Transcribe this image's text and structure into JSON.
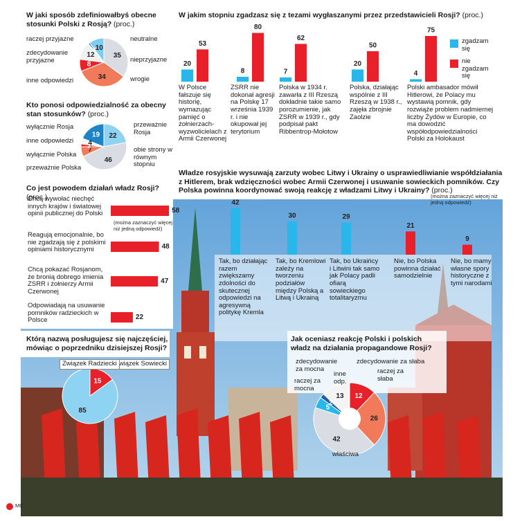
{
  "chart_data": [
    {
      "type": "pie",
      "title": "W jaki sposób zdefiniowałbyś obecne stosunki Polski z Rosją?",
      "unit": "(proc.)",
      "categories": [
        "neutralne",
        "nieprzyjazne",
        "wrogie",
        "inne odpowiedzi",
        "zdecydowanie przyjazne",
        "raczej przyjazne"
      ],
      "values": [
        35,
        34,
        8,
        12,
        1,
        10
      ],
      "colors": [
        "#d9dde3",
        "#f07a5a",
        "#e8202a",
        "#eef0f2",
        "#1f5fa8",
        "#7ccdf0"
      ]
    },
    {
      "type": "bar",
      "title": "W jakim stopniu zgadzasz się z tezami wygłaszanymi przez przedstawicieli Rosji?",
      "unit": "(proc.)",
      "categories": [
        "W Polsce fałszuje się historię, wymazując pamięć o żołnierzach-wyzwolicielach z Armii Czerwonej",
        "ZSRR nie dokonał agresji na Polskę 17 września 1939 r. i nie okupował jej terytorium",
        "Polska w 1934 r. zawarła z III Rzeszą dokładnie takie samo porozumienie, jak ZSRR w 1939 r., gdy podpisał pakt Ribbentrop-Mołotow",
        "Polska, działając wspólnie z III Rzeszą w 1938 r., zajęła zbrojnie Zaolzie",
        "Polski ambasador mówił Hitlerowi, że Polacy mu wystawią pomnik, gdy rozwiąże problem nadmiernej liczby Żydów w Europie, co ma dowodzić współodpowiedzialności Polski za Holokaust"
      ],
      "series": [
        {
          "name": "zgadzam się",
          "color": "#29b6ea",
          "values": [
            20,
            8,
            7,
            20,
            4
          ]
        },
        {
          "name": "nie zgadzam się",
          "color": "#e8202a",
          "values": [
            53,
            80,
            62,
            50,
            75
          ]
        }
      ]
    },
    {
      "type": "pie",
      "title": "Kto ponosi odpowiedzialność za obecny stan stosunków?",
      "unit": "(proc.)",
      "categories": [
        "przeważnie Rosja",
        "obie strony w równym stopniu",
        "przeważnie Polska",
        "wyłącznie Polska",
        "inne odpowiedzi",
        "wyłącznie Rosja"
      ],
      "values": [
        22,
        46,
        7,
        2,
        4,
        19
      ],
      "colors": [
        "#8fd3f2",
        "#d9dde3",
        "#f07a5a",
        "#e8202a",
        "#f4f4f4",
        "#1f84c6"
      ]
    },
    {
      "type": "bar",
      "orientation": "horizontal",
      "title": "Co jest powodem działań władz Rosji?",
      "unit": "(proc.)",
      "note": "(można zaznaczyć więcej niż jedną odpowiedź)",
      "categories": [
        "Chcą wywołać niechęć innych krajów i światowej opinii publicznej do Polski",
        "Reagują emocjonalnie, bo nie zgadzają się z polskimi opiniami historycznymi",
        "Chcą pokazać Rosjanom, że bronią dobrego imienia ZSRR i żołnierzy Armii Czerwonej",
        "Odpowiadają na usuwanie pomników radzieckich w Polsce"
      ],
      "values": [
        58,
        48,
        47,
        22
      ],
      "color": "#e8202a"
    },
    {
      "type": "bar",
      "title": "Władze rosyjskie wysuwają zarzuty wobec Litwy i Ukrainy o usprawiedliwianie współdziałania z Hitlerem, brak wdzięczności wobec Armii Czerwonej i usuwanie sowieckich pomników. Czy Polska powinna koordynować swoją reakcję z władzami Litwy i Ukrainy?",
      "unit": "(proc.)",
      "note": "(można zaznaczyć więcej niż jedną odpowiedź)",
      "categories": [
        "Tak, bo działając razem zwiększamy zdolności do skutecznej odpowiedzi na agresywną politykę Kremla",
        "Tak, bo Kremlowi zależy na tworzeniu podziałów między Polską a Litwą i Ukrainą",
        "Tak, bo Ukraińcy i Litwini tak samo jak Polacy padli ofiarą sowieckiego totalitaryzmu",
        "Nie, bo Polska powinna działać samodzielnie",
        "Nie, bo mamy własne spory historyczne z tymi narodami"
      ],
      "values": [
        42,
        30,
        29,
        21,
        9
      ],
      "colors": [
        "#29b6ea",
        "#29b6ea",
        "#29b6ea",
        "#e8202a",
        "#e8202a"
      ]
    },
    {
      "type": "pie",
      "title": "Którą nazwą posługujesz się najczęściej, mówiąc o poprzedniku dzisiejszej Rosji?",
      "categories": [
        "Związek Sowiecki",
        "Związek Radziecki"
      ],
      "values": [
        15,
        85
      ],
      "colors": [
        "#e8202a",
        "#8fd3f2"
      ]
    },
    {
      "type": "pie",
      "title": "Jak oceniasz reakcję Polski i polskich władz na działania propagandowe Rosji?",
      "categories": [
        "zdecydowanie za słaba",
        "raczej za słaba",
        "właściwa",
        "raczej za mocna",
        "zdecydowanie za mocna",
        "inne odp."
      ],
      "values": [
        12,
        26,
        42,
        5,
        2,
        13
      ],
      "colors": [
        "#e8202a",
        "#f07a5a",
        "#d9dde3",
        "#29b6ea",
        "#1f5fa8",
        "#f4f4f4"
      ]
    }
  ],
  "credit": "MC"
}
